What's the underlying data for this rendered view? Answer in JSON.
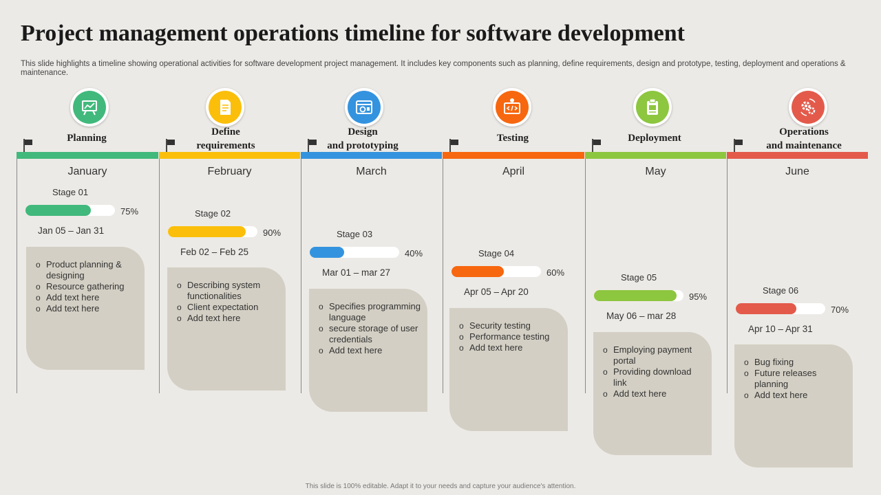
{
  "title": "Project management operations timeline for software development",
  "subtitle": "This slide highlights a timeline showing operational activities for software development project management. It includes key components such as planning, define requirements, design and prototype, testing, deployment and operations & maintenance.",
  "footer": "This slide is 100% editable.  Adapt it to your needs and capture your audience's attention.",
  "phases": [
    {
      "label_lines": [
        "Planning"
      ],
      "icon": "planning-board-icon",
      "color": "#41B97C",
      "month": "January",
      "stage": "Stage 01",
      "progress": 75,
      "progress_label": "75%",
      "dates": "Jan 05 – Jan 31",
      "items": [
        "Product planning & designing",
        "Resource gathering",
        "Add text here",
        "Add text here"
      ]
    },
    {
      "label_lines": [
        "Define",
        "requirements"
      ],
      "icon": "requirements-document-icon",
      "color": "#FBBF0B",
      "month": "February",
      "stage": "Stage 02",
      "progress": 90,
      "progress_label": "90%",
      "dates": "Feb 02 – Feb 25",
      "items": [
        "Describing system functionalities",
        "Client expectation",
        "Add text here"
      ]
    },
    {
      "label_lines": [
        "Design",
        "and prototyping"
      ],
      "icon": "design-window-icon",
      "color": "#3493DF",
      "month": "March",
      "stage": "Stage 03",
      "progress": 40,
      "progress_label": "40%",
      "dates": "Mar 01 – mar 27",
      "items": [
        "Specifies programming language",
        "secure storage of user credentials",
        "Add text here"
      ]
    },
    {
      "label_lines": [
        "Testing"
      ],
      "icon": "code-testing-icon",
      "color": "#F7670F",
      "month": "April",
      "stage": "Stage 04",
      "progress": 60,
      "progress_label": "60%",
      "dates": "Apr 05 – Apr 20",
      "items": [
        "Security testing",
        "Performance  testing",
        "Add text here"
      ]
    },
    {
      "label_lines": [
        "Deployment"
      ],
      "icon": "deployment-clipboard-icon",
      "color": "#8DC63F",
      "month": "May",
      "stage": "Stage 05",
      "progress": 95,
      "progress_label": "95%",
      "dates": "May 06 – mar 28",
      "items": [
        "Employing payment portal",
        "Providing download  link",
        "Add text here"
      ]
    },
    {
      "label_lines": [
        "Operations",
        "and maintenance"
      ],
      "icon": "maintenance-gears-icon",
      "color": "#E35A4B",
      "month": "June",
      "stage": "Stage 06",
      "progress": 70,
      "progress_label": "70%",
      "dates": "Apr 10 – Apr 31",
      "items": [
        "Bug fixing",
        "Future releases planning",
        "Add text here"
      ]
    }
  ]
}
